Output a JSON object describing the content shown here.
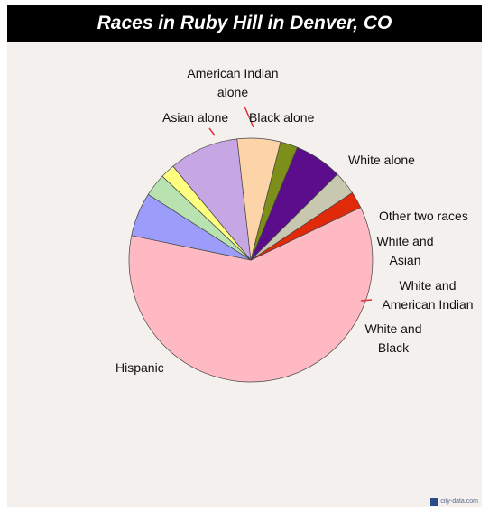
{
  "chart_data": {
    "type": "pie",
    "title": "Races in Ruby Hill in Denver, CO",
    "slices": [
      {
        "label": "Hispanic",
        "value": 60.1,
        "color": "#ffb9c2"
      },
      {
        "label": "Asian alone",
        "value": 5.8,
        "color": "#9c9cfb"
      },
      {
        "label": "American Indian alone",
        "value": 3.0,
        "color": "#b8e3b0"
      },
      {
        "label": "Black alone",
        "value": 1.9,
        "color": "#ffff80"
      },
      {
        "label": "White alone",
        "value": 9.2,
        "color": "#c6a6e3"
      },
      {
        "label": "Other two races",
        "value": 5.7,
        "color": "#fdd3a8"
      },
      {
        "label": "White and Asian",
        "value": 2.3,
        "color": "#7d8f1a"
      },
      {
        "label": "",
        "value": 6.3,
        "color": "#5b0d8c"
      },
      {
        "label": "White and American Indian",
        "value": 3.1,
        "color": "#c8c8b0"
      },
      {
        "label": "White and Black",
        "value": 2.2,
        "color": "#e02a0a"
      }
    ]
  },
  "watermark": "city-data.com"
}
